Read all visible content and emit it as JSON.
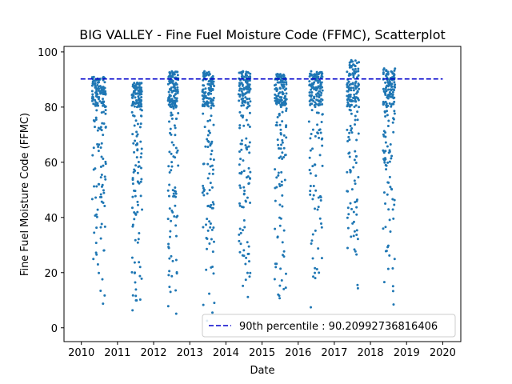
{
  "chart_data": {
    "type": "scatter",
    "title": "BIG VALLEY - Fine Fuel Moisture Code (FFMC), Scatterplot",
    "xlabel": "Date",
    "ylabel": "Fine Fuel Moisture Code (FFMC)",
    "xlim": [
      2009.52,
      2020.5
    ],
    "ylim": [
      -5,
      102
    ],
    "xticks": [
      "2010",
      "2011",
      "2012",
      "2013",
      "2014",
      "2015",
      "2016",
      "2017",
      "2018",
      "2019",
      "2020"
    ],
    "yticks": [
      "0",
      "20",
      "40",
      "60",
      "80",
      "100"
    ],
    "grid": false,
    "legend_position": "lower-right",
    "marker_color": "#1f77b4",
    "reference_color": "#0000cc",
    "reference_line": {
      "label": "90th percentile : 90.20992736816406",
      "value": 90.20992736816406
    },
    "season_clusters": [
      {
        "year": 2010,
        "start": 2010.3,
        "end": 2010.68,
        "min": 5,
        "max": 91
      },
      {
        "year": 2011,
        "start": 2011.4,
        "end": 2011.68,
        "min": 0,
        "max": 89
      },
      {
        "year": 2012,
        "start": 2012.4,
        "end": 2012.68,
        "min": 0,
        "max": 93
      },
      {
        "year": 2013,
        "start": 2013.35,
        "end": 2013.68,
        "min": 2,
        "max": 93
      },
      {
        "year": 2014,
        "start": 2014.35,
        "end": 2014.68,
        "min": 8,
        "max": 93
      },
      {
        "year": 2015,
        "start": 2015.35,
        "end": 2015.68,
        "min": 8,
        "max": 92
      },
      {
        "year": 2016,
        "start": 2016.3,
        "end": 2016.68,
        "min": 6,
        "max": 93
      },
      {
        "year": 2017,
        "start": 2017.35,
        "end": 2017.68,
        "min": 11,
        "max": 97
      },
      {
        "year": 2018,
        "start": 2018.35,
        "end": 2018.68,
        "min": 4,
        "max": 94
      }
    ],
    "points_per_season": 180
  }
}
